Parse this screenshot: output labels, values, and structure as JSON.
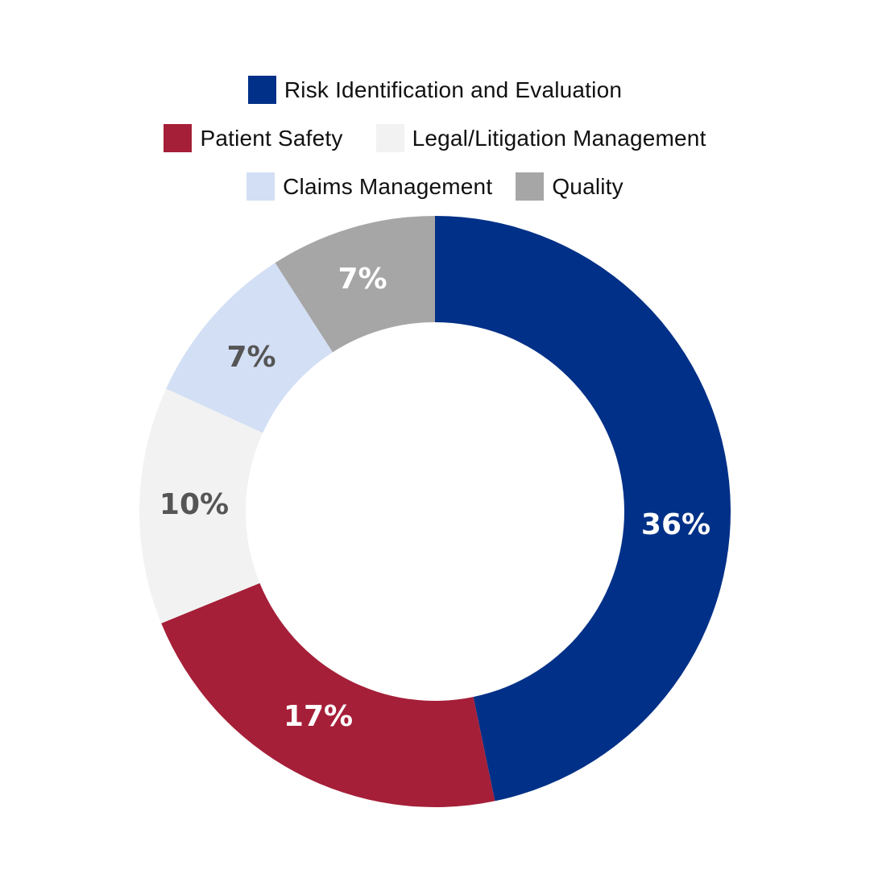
{
  "chart_data": {
    "type": "pie",
    "variant": "donut",
    "title": "",
    "categories": [
      "Risk Identification and Evaluation",
      "Patient Safety",
      "Legal/Litigation Management",
      "Claims Management",
      "Quality"
    ],
    "values": [
      36,
      17,
      10,
      7,
      7
    ],
    "labels": [
      "36%",
      "17%",
      "10%",
      "7%",
      "7%"
    ],
    "colors": [
      "#003087",
      "#A51F38",
      "#F2F2F2",
      "#D3DFF5",
      "#A6A6A6"
    ],
    "label_colors": [
      "#FFFFFF",
      "#FFFFFF",
      "#555555",
      "#555555",
      "#FFFFFF"
    ],
    "legend_position": "top",
    "start_angle_deg": 0,
    "direction": "clockwise"
  },
  "legend": {
    "rows": [
      [
        {
          "label": "Risk Identification and Evaluation",
          "color": "#003087"
        }
      ],
      [
        {
          "label": "Patient Safety",
          "color": "#A51F38"
        },
        {
          "label": "Legal/Litigation Management",
          "color": "#F2F2F2"
        }
      ],
      [
        {
          "label": "Claims Management",
          "color": "#D3DFF5"
        },
        {
          "label": "Quality",
          "color": "#A6A6A6"
        }
      ]
    ]
  }
}
